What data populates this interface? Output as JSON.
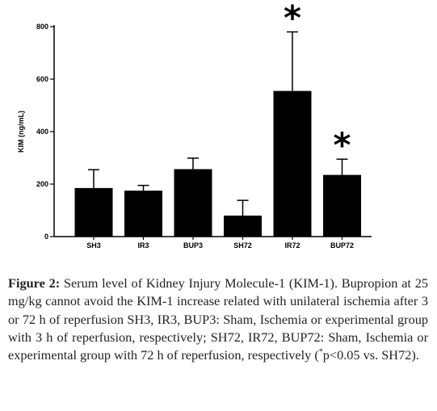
{
  "chart_data": {
    "type": "bar",
    "ylabel": "KIM (ng/mL)",
    "ylim": [
      0,
      800
    ],
    "yticks": [
      "0",
      "200",
      "400",
      "600",
      "800"
    ],
    "categories": [
      "SH3",
      "IR3",
      "BUP3",
      "SH72",
      "IR72",
      "BUP72"
    ],
    "values": [
      185,
      175,
      257,
      80,
      555,
      235
    ],
    "errors": [
      70,
      20,
      42,
      58,
      225,
      60
    ],
    "significance": [
      "",
      "",
      "",
      "",
      "*",
      "*"
    ],
    "bar_color": "#000000"
  },
  "caption": {
    "label": "Figure 2:",
    "text": " Serum level of Kidney Injury Molecule-1 (KIM-1). Bupropion at 25 mg/kg cannot avoid the KIM-1 increase related with unilateral ischemia after 3 or 72 h of reperfusion SH3, IR3, BUP3: Sham, Ischemia or experimental group with 3 h of reperfusion, respectively; SH72, IR72, BUP72: Sham, Ischemia or experimental group with 72 h of reperfusion, respectively (",
    "sup": "*",
    "tail": "p<0.05 vs. SH72)."
  }
}
